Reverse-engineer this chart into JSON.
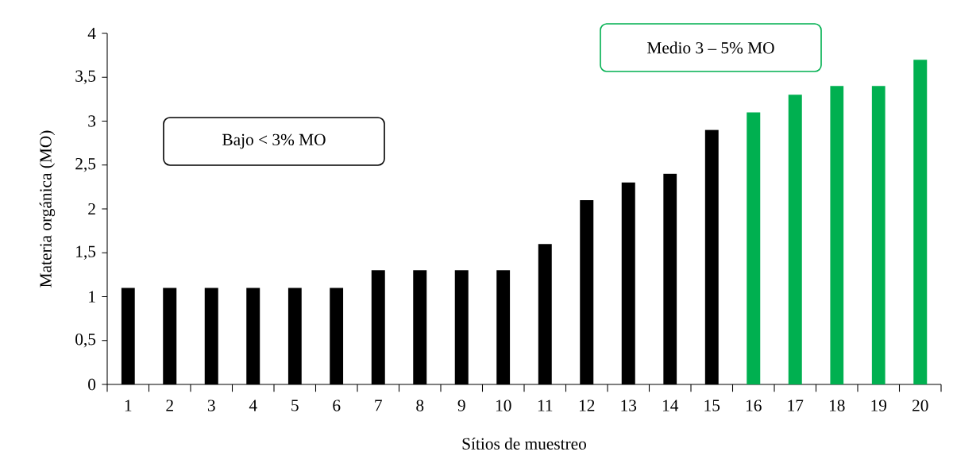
{
  "chart_data": {
    "type": "bar",
    "xlabel": "Sítios de muestreo",
    "ylabel": "Materia orgánica (MO)",
    "categories": [
      "1",
      "2",
      "3",
      "4",
      "5",
      "6",
      "7",
      "8",
      "9",
      "10",
      "11",
      "12",
      "13",
      "14",
      "15",
      "16",
      "17",
      "18",
      "19",
      "20"
    ],
    "values": [
      1.1,
      1.1,
      1.1,
      1.1,
      1.1,
      1.1,
      1.3,
      1.3,
      1.3,
      1.3,
      1.6,
      2.1,
      2.3,
      2.4,
      2.9,
      3.1,
      3.3,
      3.4,
      3.4,
      3.7
    ],
    "colors": [
      "#000000",
      "#000000",
      "#000000",
      "#000000",
      "#000000",
      "#000000",
      "#000000",
      "#000000",
      "#000000",
      "#000000",
      "#000000",
      "#000000",
      "#000000",
      "#000000",
      "#000000",
      "#00b050",
      "#00b050",
      "#00b050",
      "#00b050",
      "#00b050"
    ],
    "ylim": [
      0,
      4
    ],
    "yticks": [
      0,
      {
        "value": 0.5,
        "label": "0,5"
      },
      1,
      {
        "value": 1.5,
        "label": "1,5"
      },
      2,
      {
        "value": 2.5,
        "label": "2,5"
      },
      3,
      {
        "value": 3.5,
        "label": "3,5"
      },
      4
    ],
    "annotations": [
      "Bajo < 3% MO",
      "Medio 3 – 5% MO"
    ]
  }
}
